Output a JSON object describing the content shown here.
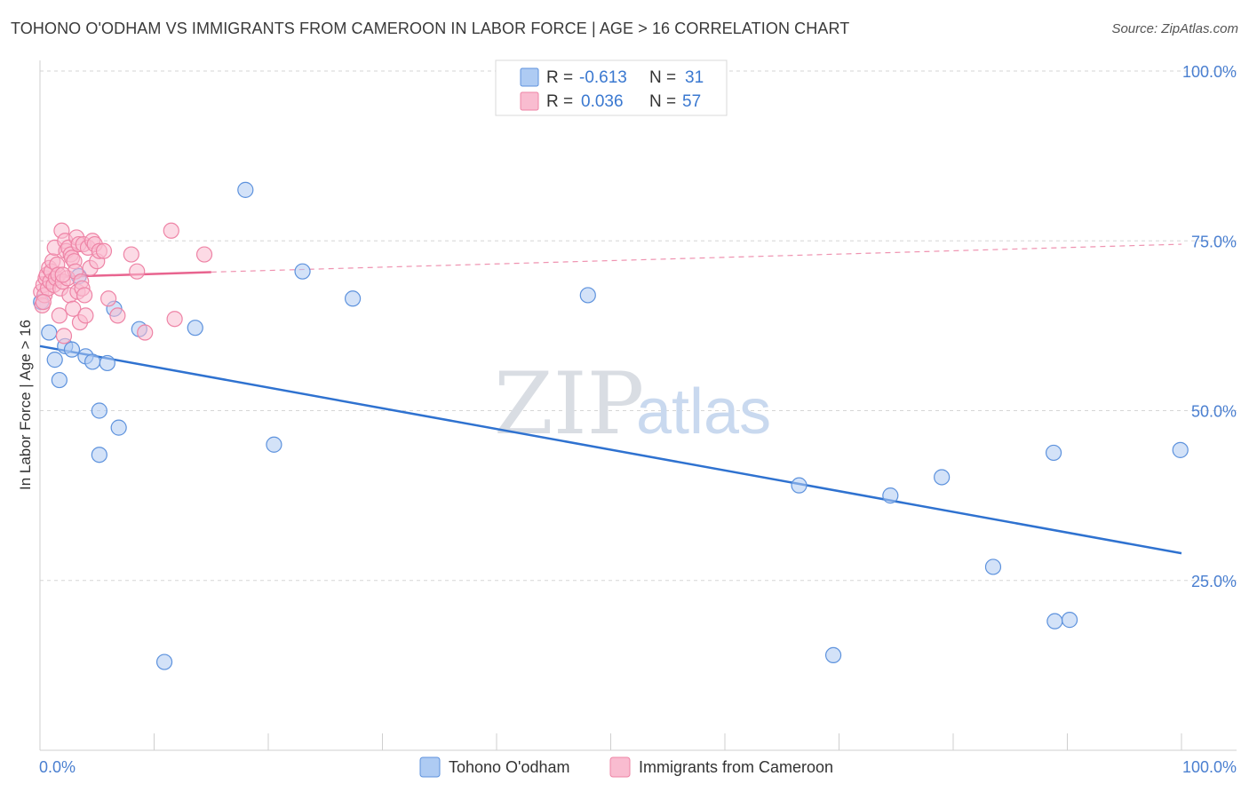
{
  "title": "TOHONO O'ODHAM VS IMMIGRANTS FROM CAMEROON IN LABOR FORCE | AGE > 16 CORRELATION CHART",
  "source": "Source: ZipAtlas.com",
  "watermark": {
    "zip": "ZIP",
    "atlas": "atlas"
  },
  "legend": {
    "r_label": "R =",
    "n_label": "N =",
    "series": [
      {
        "name": "Tohono O'odham",
        "r": "-0.613",
        "n": "31",
        "color": "#aecbf3",
        "stroke": "#5d92dd",
        "line_color": "#2f72d0"
      },
      {
        "name": "Immigrants from Cameroon",
        "r": "0.036",
        "n": "57",
        "color": "#f9bcd0",
        "stroke": "#ee84a6",
        "line_color": "#e8648f"
      }
    ]
  },
  "chart_data": {
    "type": "scatter",
    "title": "TOHONO O'ODHAM VS IMMIGRANTS FROM CAMEROON IN LABOR FORCE | AGE > 16 CORRELATION CHART",
    "xlabel": "",
    "ylabel": "In Labor Force | Age > 16",
    "xlim": [
      0,
      100
    ],
    "ylim": [
      0,
      100
    ],
    "x_tick_labels": [
      "0.0%",
      "100.0%"
    ],
    "y_ticks": [
      25,
      50,
      75,
      100
    ],
    "y_tick_labels": [
      "25.0%",
      "50.0%",
      "75.0%",
      "100.0%"
    ],
    "grid": true,
    "series": [
      {
        "name": "Tohono O'odham",
        "points": [
          [
            0.1,
            66.0
          ],
          [
            0.8,
            61.5
          ],
          [
            1.3,
            57.5
          ],
          [
            1.7,
            54.5
          ],
          [
            2.2,
            59.5
          ],
          [
            2.8,
            59.0
          ],
          [
            3.4,
            69.8
          ],
          [
            4.0,
            58.0
          ],
          [
            4.6,
            57.2
          ],
          [
            5.2,
            50.0
          ],
          [
            5.2,
            43.5
          ],
          [
            5.9,
            57.0
          ],
          [
            6.5,
            65.0
          ],
          [
            6.9,
            47.5
          ],
          [
            8.7,
            62.0
          ],
          [
            10.9,
            13.0
          ],
          [
            13.6,
            62.2
          ],
          [
            18.0,
            82.5
          ],
          [
            20.5,
            45.0
          ],
          [
            23.0,
            70.5
          ],
          [
            27.4,
            66.5
          ],
          [
            48.0,
            67.0
          ],
          [
            66.5,
            39.0
          ],
          [
            69.5,
            14.0
          ],
          [
            74.5,
            37.5
          ],
          [
            79.0,
            40.2
          ],
          [
            83.5,
            27.0
          ],
          [
            88.8,
            43.8
          ],
          [
            88.9,
            19.0
          ],
          [
            90.2,
            19.2
          ],
          [
            99.9,
            44.2
          ]
        ],
        "trendline": {
          "x": [
            0,
            100
          ],
          "y": [
            59.5,
            29.0
          ]
        }
      },
      {
        "name": "Immigrants from Cameroon",
        "points": [
          [
            0.1,
            67.5
          ],
          [
            0.2,
            65.5
          ],
          [
            0.3,
            68.5
          ],
          [
            0.4,
            67.0
          ],
          [
            0.5,
            69.5
          ],
          [
            0.6,
            70.0
          ],
          [
            0.7,
            68.0
          ],
          [
            0.8,
            71.0
          ],
          [
            0.9,
            69.0
          ],
          [
            1.0,
            70.5
          ],
          [
            1.1,
            72.0
          ],
          [
            1.2,
            68.5
          ],
          [
            1.3,
            74.0
          ],
          [
            1.4,
            69.5
          ],
          [
            1.5,
            71.5
          ],
          [
            1.6,
            70.0
          ],
          [
            1.7,
            64.0
          ],
          [
            1.8,
            68.0
          ],
          [
            1.9,
            76.5
          ],
          [
            2.0,
            69.0
          ],
          [
            2.1,
            61.0
          ],
          [
            2.2,
            75.0
          ],
          [
            2.3,
            73.5
          ],
          [
            2.4,
            69.5
          ],
          [
            2.5,
            74.0
          ],
          [
            2.6,
            67.0
          ],
          [
            2.7,
            73.0
          ],
          [
            2.8,
            72.5
          ],
          [
            2.9,
            65.0
          ],
          [
            3.0,
            72.0
          ],
          [
            3.1,
            70.5
          ],
          [
            3.2,
            75.5
          ],
          [
            3.3,
            67.5
          ],
          [
            3.4,
            74.5
          ],
          [
            3.5,
            63.0
          ],
          [
            3.6,
            69.0
          ],
          [
            3.7,
            68.0
          ],
          [
            3.8,
            74.5
          ],
          [
            3.9,
            67.0
          ],
          [
            4.0,
            64.0
          ],
          [
            4.2,
            74.0
          ],
          [
            4.4,
            71.0
          ],
          [
            4.6,
            75.0
          ],
          [
            4.8,
            74.5
          ],
          [
            5.0,
            72.0
          ],
          [
            5.2,
            73.5
          ],
          [
            5.6,
            73.5
          ],
          [
            6.0,
            66.5
          ],
          [
            6.8,
            64.0
          ],
          [
            8.0,
            73.0
          ],
          [
            8.5,
            70.5
          ],
          [
            9.2,
            61.5
          ],
          [
            11.5,
            76.5
          ],
          [
            11.8,
            63.5
          ],
          [
            14.4,
            73.0
          ],
          [
            0.3,
            66.0
          ],
          [
            2.0,
            70.0
          ]
        ],
        "trendline": {
          "x": [
            0,
            15
          ],
          "y": [
            69.6,
            70.4
          ]
        },
        "trendline_dashed": {
          "x": [
            15,
            100
          ],
          "y": [
            70.4,
            74.5
          ]
        }
      }
    ]
  }
}
